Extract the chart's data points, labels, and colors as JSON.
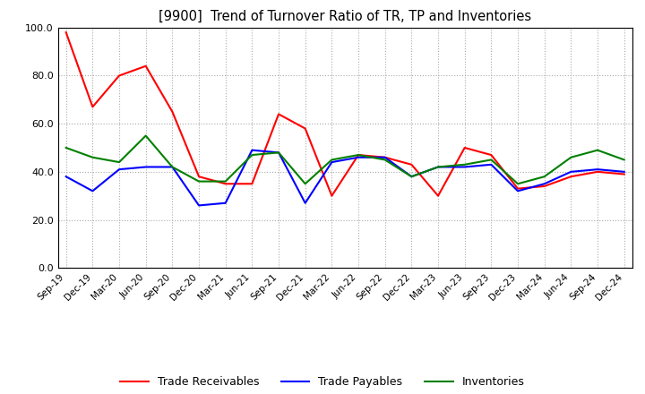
{
  "title": "[9900]  Trend of Turnover Ratio of TR, TP and Inventories",
  "x_labels": [
    "Sep-19",
    "Dec-19",
    "Mar-20",
    "Jun-20",
    "Sep-20",
    "Dec-20",
    "Mar-21",
    "Jun-21",
    "Sep-21",
    "Dec-21",
    "Mar-22",
    "Jun-22",
    "Sep-22",
    "Dec-22",
    "Mar-23",
    "Jun-23",
    "Sep-23",
    "Dec-23",
    "Mar-24",
    "Jun-24",
    "Sep-24",
    "Dec-24"
  ],
  "trade_receivables": [
    98.0,
    67.0,
    80.0,
    84.0,
    65.0,
    38.0,
    35.0,
    35.0,
    64.0,
    58.0,
    30.0,
    47.0,
    46.0,
    43.0,
    30.0,
    50.0,
    47.0,
    33.0,
    34.0,
    38.0,
    40.0,
    39.0
  ],
  "trade_payables": [
    38.0,
    32.0,
    41.0,
    42.0,
    42.0,
    26.0,
    27.0,
    49.0,
    48.0,
    27.0,
    44.0,
    46.0,
    46.0,
    38.0,
    42.0,
    42.0,
    43.0,
    32.0,
    35.0,
    40.0,
    41.0,
    40.0
  ],
  "inventories": [
    50.0,
    46.0,
    44.0,
    55.0,
    42.0,
    36.0,
    36.0,
    47.0,
    48.0,
    35.0,
    45.0,
    47.0,
    45.0,
    38.0,
    42.0,
    43.0,
    45.0,
    35.0,
    38.0,
    46.0,
    49.0,
    45.0
  ],
  "tr_color": "#ff0000",
  "tp_color": "#0000ff",
  "inv_color": "#008000",
  "ylim": [
    0.0,
    100.0
  ],
  "yticks": [
    0.0,
    20.0,
    40.0,
    60.0,
    80.0,
    100.0
  ],
  "legend_labels": [
    "Trade Receivables",
    "Trade Payables",
    "Inventories"
  ],
  "background_color": "#ffffff",
  "grid_color": "#aaaaaa"
}
